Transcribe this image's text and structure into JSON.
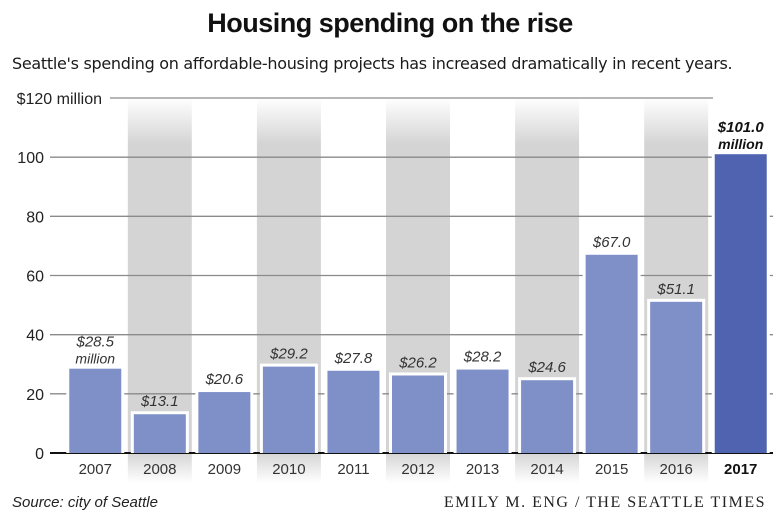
{
  "header": {
    "title": "Housing spending on the rise",
    "subtitle": "Seattle's spending on affordable-housing projects has increased dramatically in recent years."
  },
  "footer": {
    "source": "Source: city of Seattle",
    "credit": "EMILY M. ENG / THE SEATTLE TIMES"
  },
  "chart_data": {
    "type": "bar",
    "title": "Housing spending on the rise",
    "subtitle": "Seattle's spending on affordable-housing projects has increased dramatically in recent years.",
    "xlabel": "",
    "ylabel": "",
    "categories": [
      "2007",
      "2008",
      "2009",
      "2010",
      "2011",
      "2012",
      "2013",
      "2014",
      "2015",
      "2016",
      "2017"
    ],
    "values": [
      28.5,
      13.1,
      20.6,
      29.2,
      27.8,
      26.2,
      28.2,
      24.6,
      67.0,
      51.1,
      101.0
    ],
    "value_labels": [
      "$28.5",
      "$13.1",
      "$20.6",
      "$29.2",
      "$27.8",
      "$26.2",
      "$28.2",
      "$24.6",
      "$67.0",
      "$51.1",
      "$101.0"
    ],
    "value_label_suffix": {
      "0": "million",
      "10": "million"
    },
    "highlight_index": 10,
    "ylim": [
      0,
      120
    ],
    "yticks": [
      0,
      20,
      40,
      60,
      80,
      100,
      120
    ],
    "ytick_labels": [
      "0",
      "20",
      "40",
      "60",
      "80",
      "100",
      "$120 million"
    ],
    "grid": true,
    "units": "million USD",
    "colors": {
      "bar": "#7f8fc8",
      "highlight_bar": "#4f63b0",
      "band": "#d4d4d4",
      "grid": "#8a8a8a"
    }
  }
}
